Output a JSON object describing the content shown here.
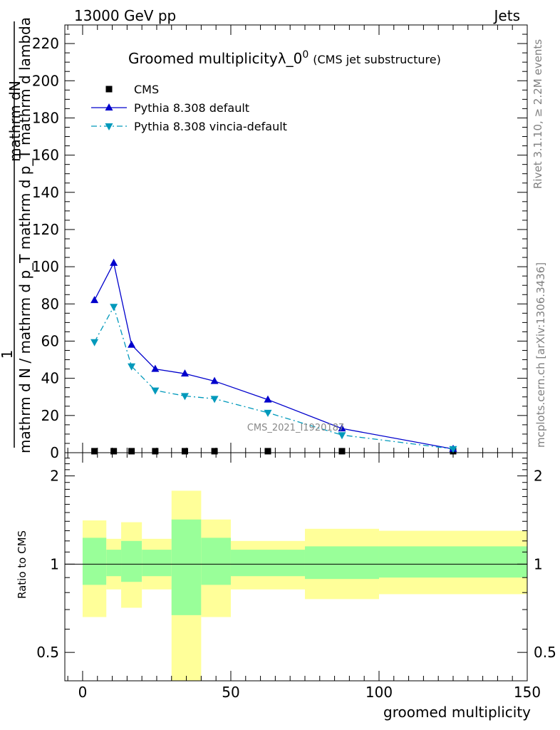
{
  "header": {
    "left": "13000 GeV pp",
    "right": "Jets"
  },
  "side_labels": {
    "rivet": "Rivet 3.1.10, ≥ 2.2M events",
    "mcplots": "mcplots.cern.ch [arXiv:1306.3436]"
  },
  "chart_data": {
    "type": "line",
    "title_main": "Groomed multiplicityλ_0",
    "title_sup": "0",
    "title_sub": "(CMS jet substructure)",
    "watermark": "CMS_2021_I1920187",
    "ylabel_top": "1",
    "ylabel_num": "mathrm dN",
    "ylabel_den": "mathrm d N / mathrm d p_T mathrm d p_T mathrm d lambda",
    "upper": {
      "ylim": [
        0,
        230
      ],
      "yticks": [
        0,
        20,
        40,
        60,
        80,
        100,
        120,
        140,
        160,
        180,
        200,
        220
      ],
      "ytick_labels": [
        "0",
        "20",
        "40",
        "60",
        "80",
        "100",
        "120",
        "140",
        "160",
        "180",
        "200",
        "220"
      ]
    },
    "ratio": {
      "ylabel": "Ratio to CMS",
      "ylim": [
        0.4,
        2.4
      ],
      "log": true,
      "yticks": [
        0.5,
        1,
        2
      ],
      "ytick_labels": [
        "0.5",
        "1",
        "2"
      ]
    },
    "xlabel": "groomed multiplicity",
    "xlim": [
      -6,
      150
    ],
    "xticks": [
      0,
      50,
      100,
      150
    ],
    "xtick_labels": [
      "0",
      "50",
      "100",
      "150"
    ],
    "legend_position": "top-left",
    "series": [
      {
        "name": "CMS",
        "color": "#000000",
        "marker": "square",
        "x": [
          4,
          10.5,
          16.5,
          24.5,
          34.5,
          44.5,
          62.5,
          87.5,
          125
        ],
        "y": [
          0.8,
          0.8,
          0.8,
          0.8,
          0.8,
          0.8,
          0.8,
          0.8,
          0.8
        ]
      },
      {
        "name": "Pythia 8.308 default",
        "color": "#0000cc",
        "marker": "triangle-up",
        "dash": "solid",
        "x": [
          4,
          10.5,
          16.5,
          24.5,
          34.5,
          44.5,
          62.5,
          87.5,
          125
        ],
        "y": [
          82,
          102,
          58,
          45,
          42.5,
          38.5,
          28.5,
          13,
          2
        ]
      },
      {
        "name": "Pythia 8.308 vincia-default",
        "color": "#0099bb",
        "marker": "triangle-down",
        "dash": "dashdot",
        "x": [
          4,
          10.5,
          16.5,
          24.5,
          34.5,
          44.5,
          62.5,
          87.5,
          125
        ],
        "y": [
          59.5,
          78.5,
          46.5,
          33.5,
          30.5,
          29,
          21.5,
          9.5,
          2
        ]
      }
    ],
    "ratio_bands": {
      "outer_color": "#ffff99",
      "inner_color": "#99ff99",
      "bins": [
        {
          "x0": 0,
          "x1": 8,
          "outer": [
            0.66,
            1.41
          ],
          "inner": [
            0.85,
            1.23
          ]
        },
        {
          "x0": 8,
          "x1": 13,
          "outer": [
            0.82,
            1.22
          ],
          "inner": [
            0.91,
            1.12
          ]
        },
        {
          "x0": 13,
          "x1": 20,
          "outer": [
            0.71,
            1.39
          ],
          "inner": [
            0.87,
            1.2
          ]
        },
        {
          "x0": 20,
          "x1": 30,
          "outer": [
            0.82,
            1.22
          ],
          "inner": [
            0.91,
            1.12
          ]
        },
        {
          "x0": 30,
          "x1": 40,
          "outer": [
            0.33,
            1.78
          ],
          "inner": [
            0.67,
            1.42
          ]
        },
        {
          "x0": 40,
          "x1": 50,
          "outer": [
            0.66,
            1.42
          ],
          "inner": [
            0.85,
            1.23
          ]
        },
        {
          "x0": 50,
          "x1": 75,
          "outer": [
            0.82,
            1.2
          ],
          "inner": [
            0.91,
            1.12
          ]
        },
        {
          "x0": 75,
          "x1": 100,
          "outer": [
            0.76,
            1.32
          ],
          "inner": [
            0.89,
            1.15
          ]
        },
        {
          "x0": 100,
          "x1": 150,
          "outer": [
            0.79,
            1.3
          ],
          "inner": [
            0.9,
            1.15
          ]
        }
      ]
    }
  }
}
